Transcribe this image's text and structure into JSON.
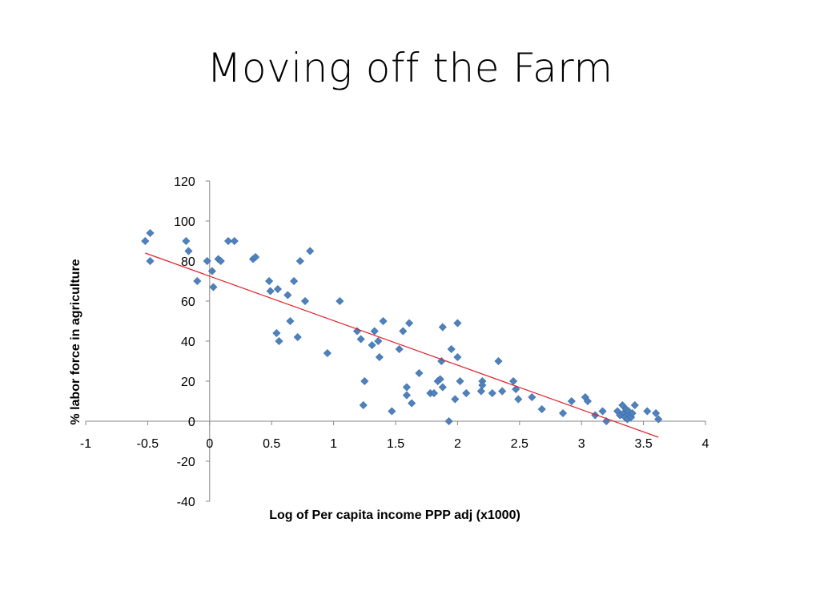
{
  "slide": {
    "title": "Moving off the Farm"
  },
  "chart_data": {
    "type": "scatter",
    "title": "",
    "xlabel": "Log of Per capita income PPP adj (x1000)",
    "ylabel": "% labor force in agriculture",
    "xlim": [
      -1,
      4
    ],
    "ylim": [
      -40,
      120
    ],
    "x_ticks": [
      -1,
      -0.5,
      0,
      0.5,
      1,
      1.5,
      2,
      2.5,
      3,
      3.5,
      4
    ],
    "y_ticks": [
      -40,
      -20,
      0,
      20,
      40,
      60,
      80,
      100,
      120
    ],
    "grid": false,
    "legend": "none",
    "marker_color": "#4F81BD",
    "trendline_color": "#E0202A",
    "trendline": {
      "x": [
        -0.52,
        3.62
      ],
      "y": [
        84,
        -8
      ]
    },
    "points": [
      {
        "x": -0.52,
        "y": 90
      },
      {
        "x": -0.48,
        "y": 94
      },
      {
        "x": -0.48,
        "y": 80
      },
      {
        "x": -0.19,
        "y": 90
      },
      {
        "x": -0.17,
        "y": 85
      },
      {
        "x": -0.1,
        "y": 70
      },
      {
        "x": -0.02,
        "y": 80
      },
      {
        "x": 0.02,
        "y": 75
      },
      {
        "x": 0.03,
        "y": 67
      },
      {
        "x": 0.07,
        "y": 81
      },
      {
        "x": 0.09,
        "y": 80
      },
      {
        "x": 0.15,
        "y": 90
      },
      {
        "x": 0.2,
        "y": 90
      },
      {
        "x": 0.35,
        "y": 81
      },
      {
        "x": 0.37,
        "y": 82
      },
      {
        "x": 0.48,
        "y": 70
      },
      {
        "x": 0.49,
        "y": 65
      },
      {
        "x": 0.54,
        "y": 44
      },
      {
        "x": 0.55,
        "y": 66
      },
      {
        "x": 0.56,
        "y": 40
      },
      {
        "x": 0.63,
        "y": 63
      },
      {
        "x": 0.65,
        "y": 50
      },
      {
        "x": 0.68,
        "y": 70
      },
      {
        "x": 0.71,
        "y": 42
      },
      {
        "x": 0.73,
        "y": 80
      },
      {
        "x": 0.77,
        "y": 60
      },
      {
        "x": 0.81,
        "y": 85
      },
      {
        "x": 0.95,
        "y": 34
      },
      {
        "x": 1.05,
        "y": 60
      },
      {
        "x": 1.19,
        "y": 45
      },
      {
        "x": 1.22,
        "y": 41
      },
      {
        "x": 1.24,
        "y": 8
      },
      {
        "x": 1.25,
        "y": 20
      },
      {
        "x": 1.31,
        "y": 38
      },
      {
        "x": 1.33,
        "y": 45
      },
      {
        "x": 1.36,
        "y": 40
      },
      {
        "x": 1.37,
        "y": 32
      },
      {
        "x": 1.4,
        "y": 50
      },
      {
        "x": 1.47,
        "y": 5
      },
      {
        "x": 1.53,
        "y": 36
      },
      {
        "x": 1.56,
        "y": 45
      },
      {
        "x": 1.59,
        "y": 17
      },
      {
        "x": 1.59,
        "y": 13
      },
      {
        "x": 1.61,
        "y": 49
      },
      {
        "x": 1.63,
        "y": 9
      },
      {
        "x": 1.69,
        "y": 24
      },
      {
        "x": 1.78,
        "y": 14
      },
      {
        "x": 1.81,
        "y": 14
      },
      {
        "x": 1.84,
        "y": 20
      },
      {
        "x": 1.86,
        "y": 21
      },
      {
        "x": 1.87,
        "y": 30
      },
      {
        "x": 1.88,
        "y": 17
      },
      {
        "x": 1.88,
        "y": 47
      },
      {
        "x": 1.93,
        "y": 0
      },
      {
        "x": 1.95,
        "y": 36
      },
      {
        "x": 1.98,
        "y": 11
      },
      {
        "x": 2.0,
        "y": 49
      },
      {
        "x": 2.0,
        "y": 32
      },
      {
        "x": 2.02,
        "y": 20
      },
      {
        "x": 2.07,
        "y": 14
      },
      {
        "x": 2.19,
        "y": 15
      },
      {
        "x": 2.2,
        "y": 20
      },
      {
        "x": 2.2,
        "y": 18
      },
      {
        "x": 2.28,
        "y": 14
      },
      {
        "x": 2.33,
        "y": 30
      },
      {
        "x": 2.36,
        "y": 15
      },
      {
        "x": 2.45,
        "y": 20
      },
      {
        "x": 2.47,
        "y": 16
      },
      {
        "x": 2.49,
        "y": 11
      },
      {
        "x": 2.6,
        "y": 12
      },
      {
        "x": 2.68,
        "y": 6
      },
      {
        "x": 2.85,
        "y": 4
      },
      {
        "x": 2.92,
        "y": 10
      },
      {
        "x": 3.03,
        "y": 12
      },
      {
        "x": 3.05,
        "y": 10
      },
      {
        "x": 3.11,
        "y": 3
      },
      {
        "x": 3.17,
        "y": 5
      },
      {
        "x": 3.2,
        "y": 0
      },
      {
        "x": 3.29,
        "y": 5
      },
      {
        "x": 3.31,
        "y": 3
      },
      {
        "x": 3.33,
        "y": 8
      },
      {
        "x": 3.34,
        "y": 4
      },
      {
        "x": 3.35,
        "y": 2
      },
      {
        "x": 3.36,
        "y": 6
      },
      {
        "x": 3.37,
        "y": 1
      },
      {
        "x": 3.38,
        "y": 5
      },
      {
        "x": 3.39,
        "y": 3
      },
      {
        "x": 3.4,
        "y": 2
      },
      {
        "x": 3.41,
        "y": 4
      },
      {
        "x": 3.43,
        "y": 8
      },
      {
        "x": 3.53,
        "y": 5
      },
      {
        "x": 3.6,
        "y": 4
      },
      {
        "x": 3.62,
        "y": 1
      }
    ]
  }
}
